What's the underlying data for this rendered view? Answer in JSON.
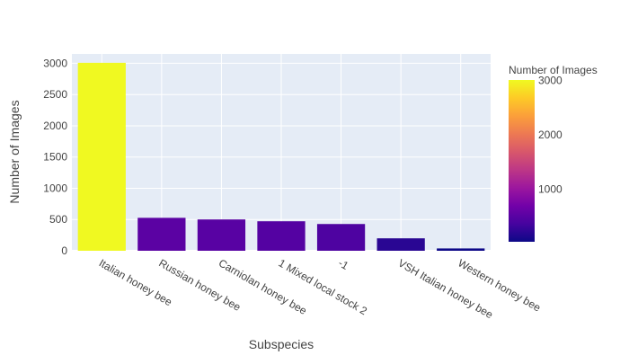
{
  "chart_data": {
    "type": "bar",
    "title": "",
    "xlabel": "Subspecies",
    "ylabel": "Number of Images",
    "categories": [
      "Italian honey bee",
      "Russian honey bee",
      "Carniolan honey bee",
      "1 Mixed local stock 2",
      "-1",
      "VSH Italian honey bee",
      "Western honey bee"
    ],
    "values": [
      3008,
      527,
      501,
      472,
      428,
      199,
      37
    ],
    "ylim": [
      0,
      3150
    ],
    "yticks": [
      0,
      500,
      1000,
      1500,
      2000,
      2500,
      3000
    ],
    "ytick_labels": [
      "0",
      "500",
      "1000",
      "1500",
      "2000",
      "2500",
      "3000"
    ],
    "grid": true,
    "colorbar": {
      "title": "Number of Images",
      "range": [
        37,
        3008
      ],
      "ticks": [
        1000,
        2000,
        3000
      ],
      "tick_labels": [
        "1000",
        "2000",
        "3000"
      ],
      "colorscale": [
        "#0d0887",
        "#46039f",
        "#7201a8",
        "#9c179e",
        "#bd3786",
        "#d8576b",
        "#ed7953",
        "#fb9f3a",
        "#fdca26",
        "#f0f921"
      ]
    },
    "plot_background": "#e5ecf6",
    "grid_color": "#ffffff"
  }
}
